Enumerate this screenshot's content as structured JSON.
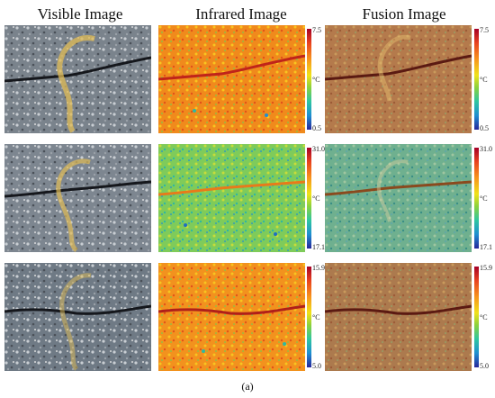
{
  "columns": [
    "Visible Image",
    "Infrared Image",
    "Fusion Image"
  ],
  "rows": [
    {
      "max": "7.5",
      "unit": "°C",
      "min": "0.5"
    },
    {
      "max": "31.0",
      "unit": "°C",
      "min": "17.1"
    },
    {
      "max": "15.9",
      "unit": "°C",
      "min": "5.0"
    }
  ],
  "caption": "(a)",
  "palette": {
    "asphalt": "#7d8690",
    "crack": "#1a1c22",
    "paint": "#d9b454",
    "ir_warm": "#f07a18",
    "ir_cool": "#7cc94a",
    "colorbar": [
      "#a50026",
      "#e8421f",
      "#f7941d",
      "#f0e21a",
      "#8cd23d",
      "#2fc6a0",
      "#1f8fd1",
      "#27269a"
    ]
  }
}
